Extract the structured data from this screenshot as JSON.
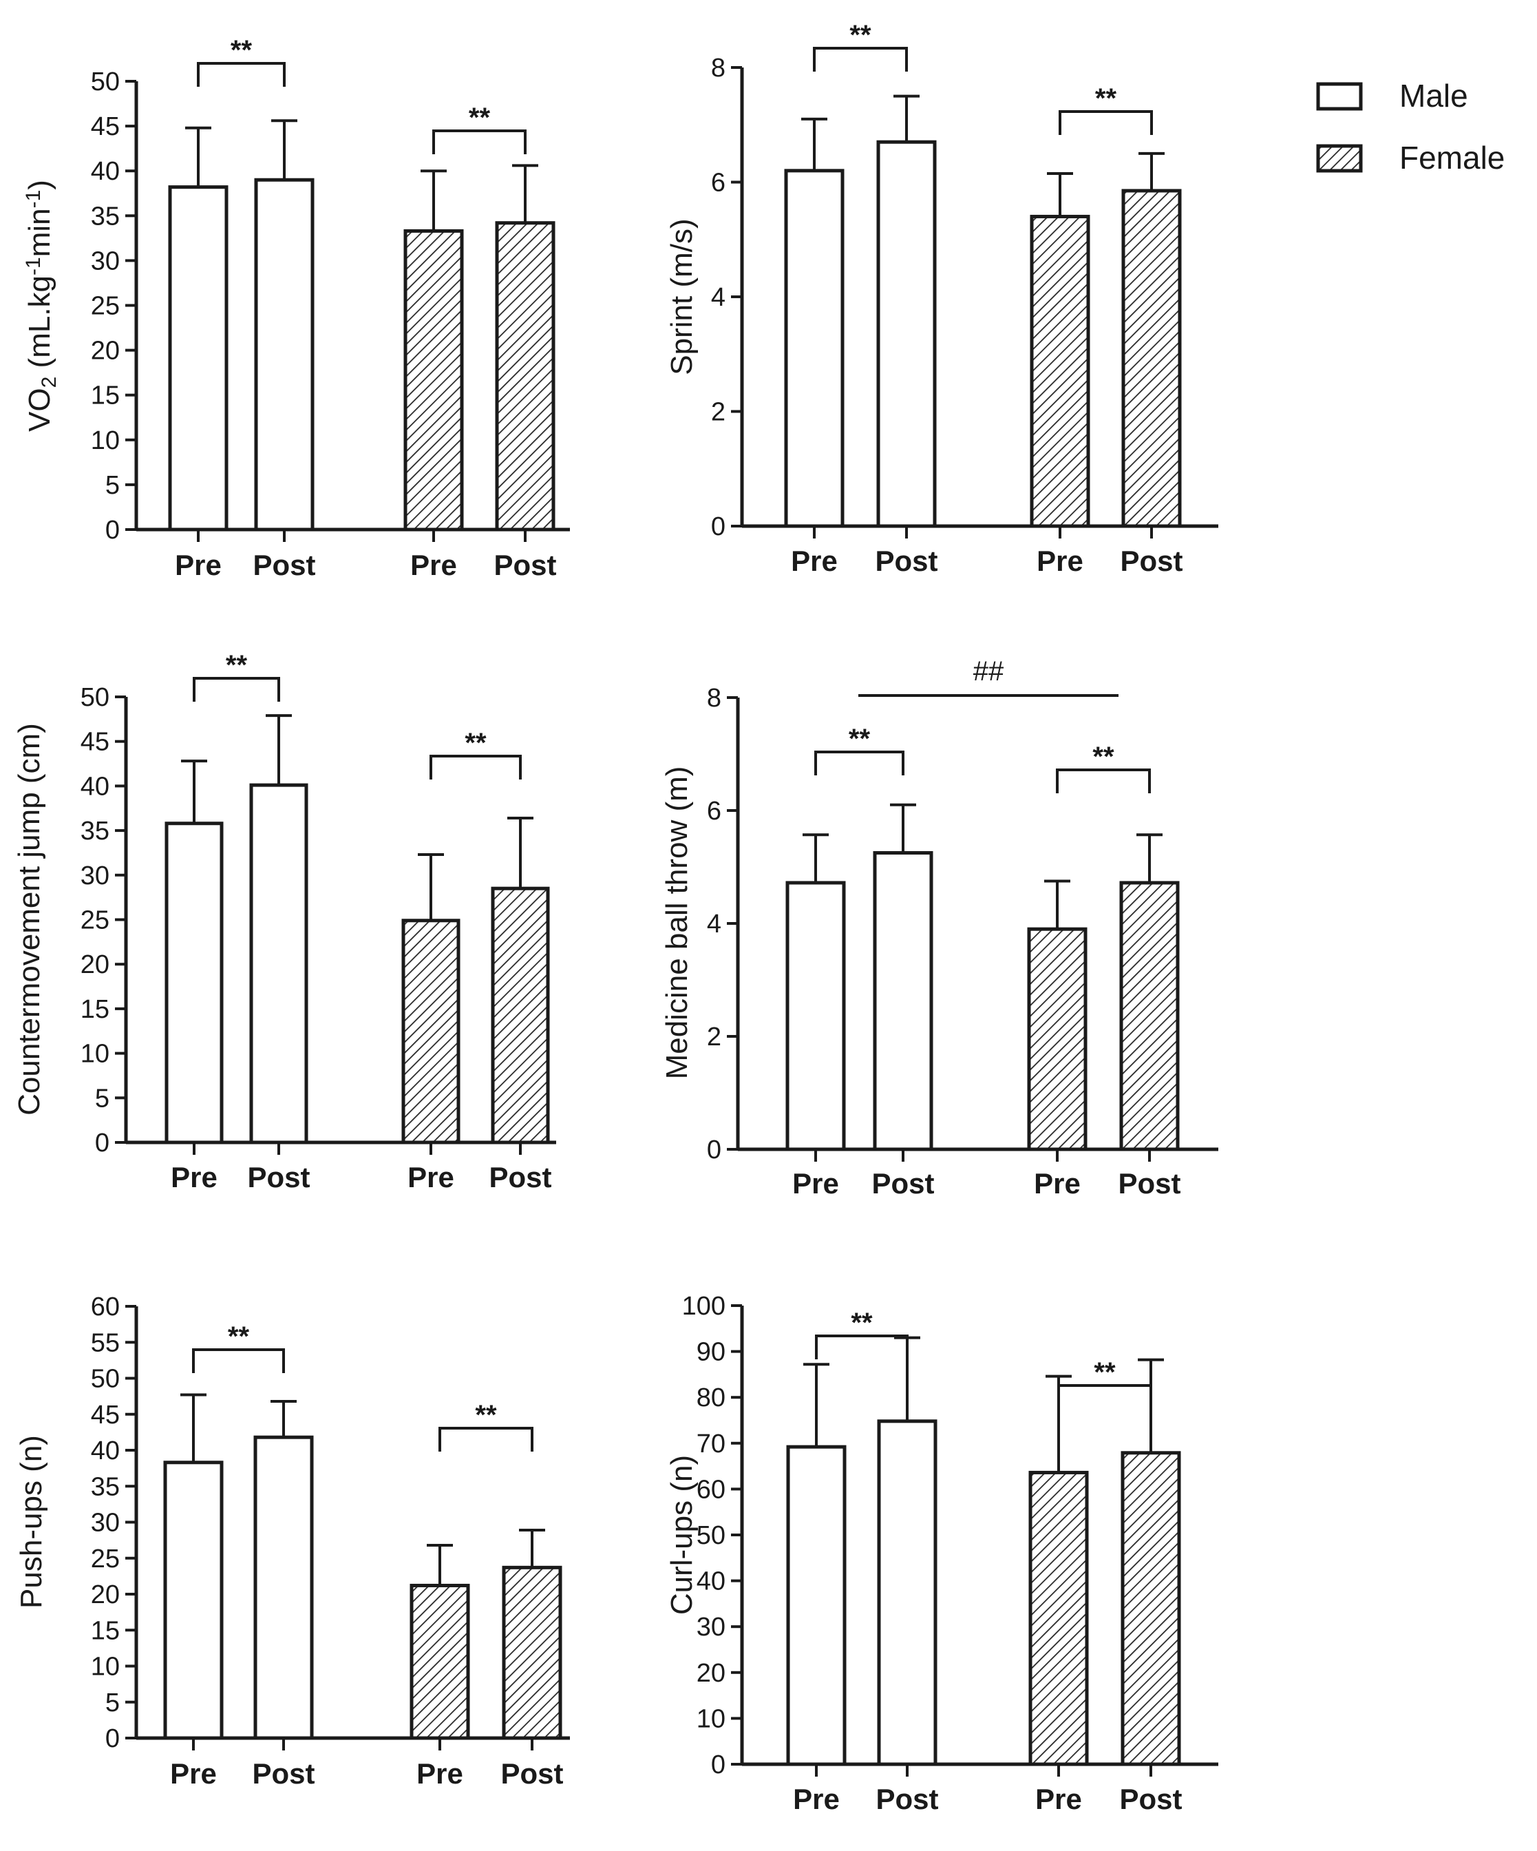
{
  "legend": {
    "male_label": "Male",
    "female_label": "Female"
  },
  "chart_data": [
    {
      "id": "vo2",
      "type": "bar",
      "ylabel_main": "VO",
      "ylabel_sub": "2",
      "ylabel_rest": " (mL.kg",
      "ylabel_sup1": "-1",
      "ylabel_mid": "min",
      "ylabel_sup2": "-1",
      "ylabel_end": ")",
      "ylim": [
        0,
        50
      ],
      "yticks": [
        0,
        5,
        10,
        15,
        20,
        25,
        30,
        35,
        40,
        45,
        50
      ],
      "categories": [
        "Pre",
        "Post",
        "Pre",
        "Post"
      ],
      "groups": [
        "Male",
        "Male",
        "Female",
        "Female"
      ],
      "values": [
        38.2,
        39.0,
        33.3,
        34.2
      ],
      "errors": [
        6.6,
        6.6,
        6.7,
        6.4
      ],
      "significance": [
        {
          "from": 0,
          "to": 1,
          "label": "**"
        },
        {
          "from": 2,
          "to": 3,
          "label": "**"
        }
      ]
    },
    {
      "id": "sprint",
      "type": "bar",
      "ylabel": "Sprint (m/s)",
      "ylim": [
        0,
        8
      ],
      "yticks": [
        0,
        2,
        4,
        6,
        8
      ],
      "categories": [
        "Pre",
        "Post",
        "Pre",
        "Post"
      ],
      "groups": [
        "Male",
        "Male",
        "Female",
        "Female"
      ],
      "values": [
        6.2,
        6.7,
        5.4,
        5.85
      ],
      "errors": [
        0.9,
        0.8,
        0.75,
        0.65
      ],
      "significance": [
        {
          "from": 0,
          "to": 1,
          "label": "**"
        },
        {
          "from": 2,
          "to": 3,
          "label": "**"
        }
      ]
    },
    {
      "id": "cmj",
      "type": "bar",
      "ylabel": "Countermovement jump (cm)",
      "ylim": [
        0,
        50
      ],
      "yticks": [
        0,
        5,
        10,
        15,
        20,
        25,
        30,
        35,
        40,
        45,
        50
      ],
      "categories": [
        "Pre",
        "Post",
        "Pre",
        "Post"
      ],
      "groups": [
        "Male",
        "Male",
        "Female",
        "Female"
      ],
      "values": [
        35.8,
        40.1,
        24.9,
        28.5
      ],
      "errors": [
        7.0,
        7.8,
        7.4,
        7.9
      ],
      "significance": [
        {
          "from": 0,
          "to": 1,
          "label": "**"
        },
        {
          "from": 2,
          "to": 3,
          "label": "**"
        }
      ]
    },
    {
      "id": "medball",
      "type": "bar",
      "ylabel": "Medicine ball throw (m)",
      "ylim": [
        0,
        8
      ],
      "yticks": [
        0,
        2,
        4,
        6,
        8
      ],
      "categories": [
        "Pre",
        "Post",
        "Pre",
        "Post"
      ],
      "groups": [
        "Male",
        "Male",
        "Female",
        "Female"
      ],
      "values": [
        4.72,
        5.25,
        3.9,
        4.72
      ],
      "errors": [
        0.85,
        0.85,
        0.85,
        0.85
      ],
      "significance": [
        {
          "from": 0,
          "to": 1,
          "label": "**"
        },
        {
          "from": 2,
          "to": 3,
          "label": "**"
        }
      ],
      "group_comparison": {
        "label": "##"
      }
    },
    {
      "id": "pushups",
      "type": "bar",
      "ylabel": "Push-ups (n)",
      "ylim": [
        0,
        60
      ],
      "yticks": [
        0,
        5,
        10,
        15,
        20,
        25,
        30,
        35,
        40,
        45,
        50,
        55,
        60
      ],
      "categories": [
        "Pre",
        "Post",
        "Pre",
        "Post"
      ],
      "groups": [
        "Male",
        "Male",
        "Female",
        "Female"
      ],
      "values": [
        38.3,
        41.8,
        21.2,
        23.7
      ],
      "errors": [
        9.4,
        5.0,
        5.6,
        5.2
      ],
      "significance": [
        {
          "from": 0,
          "to": 1,
          "label": "**"
        },
        {
          "from": 2,
          "to": 3,
          "label": "**"
        }
      ]
    },
    {
      "id": "curlups",
      "type": "bar",
      "ylabel": "Curl-ups (n)",
      "ylim": [
        0,
        100
      ],
      "yticks": [
        0,
        10,
        20,
        30,
        40,
        50,
        60,
        70,
        80,
        90,
        100
      ],
      "categories": [
        "Pre",
        "Post",
        "Pre",
        "Post"
      ],
      "groups": [
        "Male",
        "Male",
        "Female",
        "Female"
      ],
      "values": [
        69.2,
        74.8,
        63.6,
        67.9
      ],
      "errors": [
        18.0,
        18.2,
        21.0,
        20.3
      ],
      "significance": [
        {
          "from": 0,
          "to": 1,
          "label": "**"
        },
        {
          "from": 2,
          "to": 3,
          "label": "**"
        }
      ]
    }
  ]
}
